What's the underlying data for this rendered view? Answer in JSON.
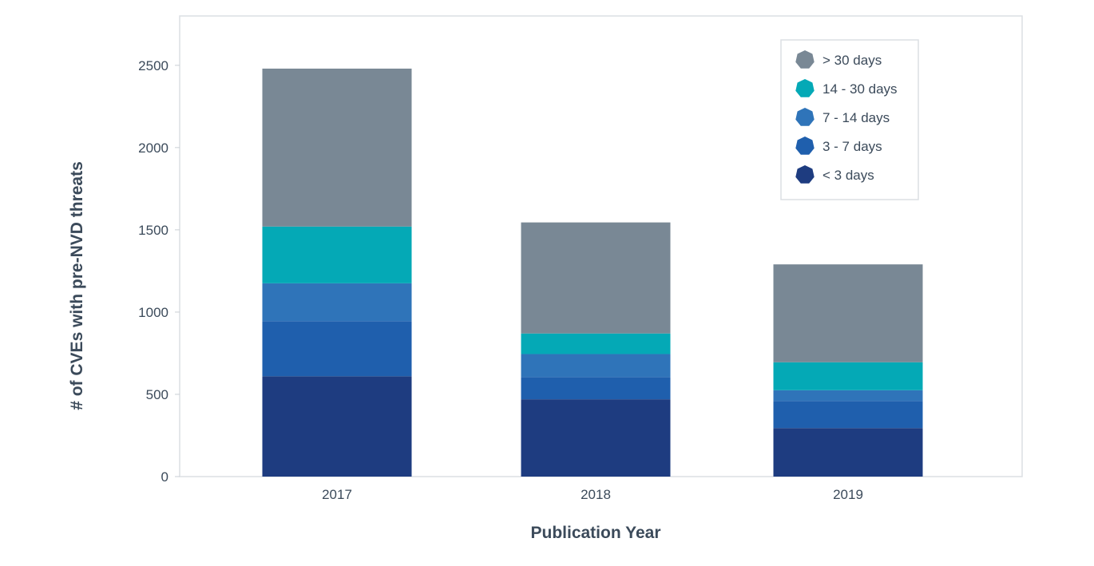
{
  "chart_data": {
    "type": "bar",
    "stacked": true,
    "categories": [
      "2017",
      "2018",
      "2019"
    ],
    "series": [
      {
        "name": "< 3 days",
        "color": "#1e3c80",
        "values": [
          610,
          470,
          295
        ]
      },
      {
        "name": "3 - 7 days",
        "color": "#1f5fad",
        "values": [
          335,
          135,
          165
        ]
      },
      {
        "name": "7 - 14 days",
        "color": "#2f74b9",
        "values": [
          230,
          140,
          65
        ]
      },
      {
        "name": "14 - 30 days",
        "color": "#04a9b6",
        "values": [
          345,
          125,
          170
        ]
      },
      {
        "name": "> 30 days",
        "color": "#798895",
        "values": [
          960,
          675,
          595
        ]
      }
    ],
    "xlabel": "Publication Year",
    "ylabel": "# of CVEs with pre-NVD threats",
    "ylim": [
      0,
      2800
    ],
    "yticks": [
      0,
      500,
      1000,
      1500,
      2000,
      2500
    ],
    "legend": "top-right",
    "grid": false
  }
}
